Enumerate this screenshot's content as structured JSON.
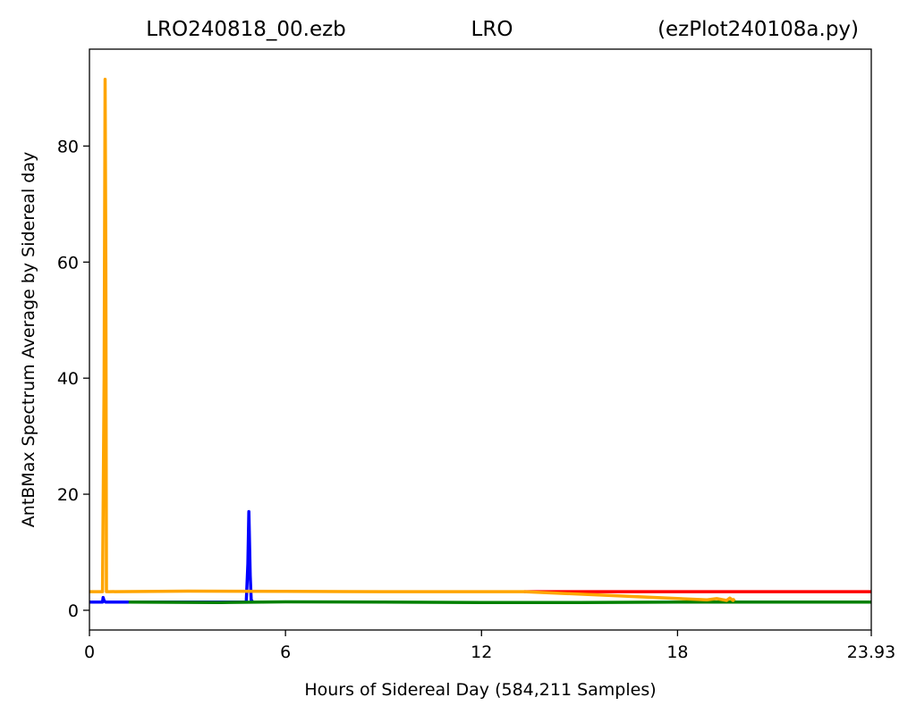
{
  "chart_data": {
    "type": "line",
    "title_left": "LRO240818_00.ezb",
    "title_center": "LRO",
    "title_right": "(ezPlot240108a.py)",
    "xlabel": "Hours of Sidereal Day  (584,211 Samples)",
    "ylabel": "AntBMax Spectrum Average by Sidereal day",
    "xlim": [
      0,
      23.93
    ],
    "ylim": [
      -3.4,
      96.7
    ],
    "x_ticks": [
      {
        "value": 0,
        "label": "0"
      },
      {
        "value": 6,
        "label": "6"
      },
      {
        "value": 12,
        "label": "12"
      },
      {
        "value": 18,
        "label": "18"
      },
      {
        "value": 23.93,
        "label": "23.93"
      }
    ],
    "y_ticks": [
      {
        "value": 0,
        "label": "0"
      },
      {
        "value": 20,
        "label": "20"
      },
      {
        "value": 40,
        "label": "40"
      },
      {
        "value": 60,
        "label": "60"
      },
      {
        "value": 80,
        "label": "80"
      }
    ],
    "grid": false,
    "series": [
      {
        "color": "#ff0000",
        "x": [
          13.3,
          23.93
        ],
        "y": [
          3.2,
          3.2
        ]
      },
      {
        "color": "#0000ff",
        "x": [
          0,
          0.4,
          0.42,
          0.45,
          0.5,
          1.2,
          4.8,
          4.85,
          4.88,
          4.92,
          4.95,
          5.0
        ],
        "y": [
          1.4,
          1.4,
          2.2,
          1.6,
          1.4,
          1.4,
          1.4,
          8.0,
          17.0,
          6.0,
          1.8,
          1.4
        ]
      },
      {
        "color": "#008000",
        "x": [
          1.2,
          4,
          6,
          9,
          12,
          15,
          18,
          21,
          23.93
        ],
        "y": [
          1.4,
          1.35,
          1.45,
          1.4,
          1.35,
          1.35,
          1.4,
          1.4,
          1.4
        ]
      },
      {
        "color": "#ffa500",
        "x": [
          0.0,
          0.4,
          0.45,
          0.48,
          0.5,
          0.52,
          0.55,
          0.6,
          3,
          6,
          9,
          12,
          13.3,
          18.9,
          19.2,
          19.5,
          19.6,
          19.7,
          19.75
        ],
        "y": [
          3.2,
          3.2,
          40.0,
          91.5,
          60.0,
          3.2,
          3.2,
          3.2,
          3.3,
          3.25,
          3.2,
          3.2,
          3.2,
          1.8,
          2.0,
          1.7,
          2.1,
          1.7,
          2.0
        ]
      }
    ]
  }
}
